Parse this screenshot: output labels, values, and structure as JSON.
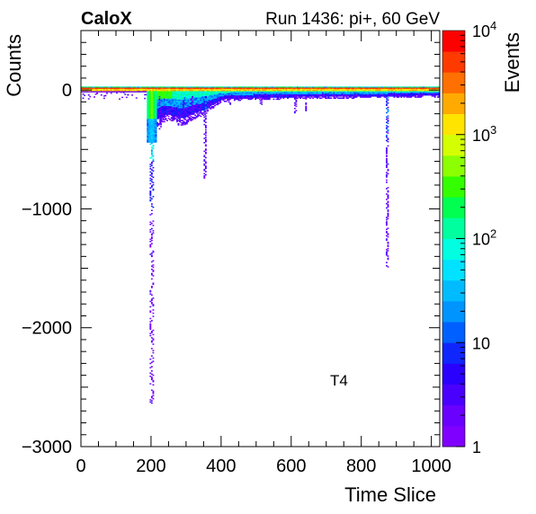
{
  "chart_data": {
    "type": "heatmap",
    "title_left": "CaloX",
    "title_right": "Run 1436: pi+, 60 GeV",
    "xlabel": "Time Slice",
    "ylabel": "Counts",
    "zlabel": "Events",
    "annotation": "T4",
    "xlim": [
      0,
      1024
    ],
    "ylim": [
      -3000,
      500
    ],
    "zlim": [
      1,
      10000
    ],
    "zscale": "log",
    "x_ticks": [
      0,
      200,
      400,
      600,
      800,
      1000
    ],
    "x_tick_labels": [
      "0",
      "200",
      "400",
      "600",
      "800",
      "1000"
    ],
    "y_ticks": [
      0,
      -1000,
      -2000,
      -3000
    ],
    "y_tick_labels": [
      "0",
      "−1000",
      "−2000",
      "−3000"
    ],
    "z_tick_labels": [
      {
        "value": 1,
        "base": "1",
        "exp": ""
      },
      {
        "value": 10,
        "base": "10",
        "exp": ""
      },
      {
        "value": 100,
        "base": "10",
        "exp": "2"
      },
      {
        "value": 1000,
        "base": "10",
        "exp": "3"
      },
      {
        "value": 10000,
        "base": "10",
        "exp": "4"
      }
    ],
    "baseline": {
      "x": [
        0,
        1024
      ],
      "y": 20
    },
    "features": [
      {
        "x": 200,
        "y_min": -2650,
        "y_max": 0
      },
      {
        "x": 225,
        "y_min": -250,
        "y_max": 0
      },
      {
        "x": 290,
        "y_min": -300,
        "y_max": 0
      },
      {
        "x": 350,
        "y_min": -750,
        "y_max": 0
      },
      {
        "x": 870,
        "y_min": -1500,
        "y_max": 0
      }
    ]
  }
}
